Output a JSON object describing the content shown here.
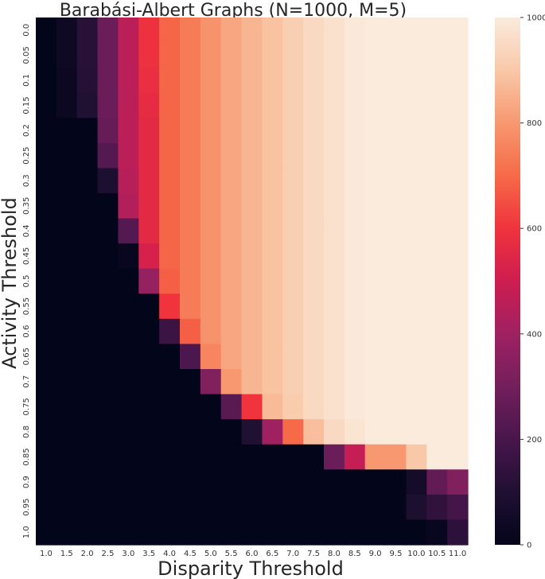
{
  "chart_data": {
    "type": "heatmap",
    "title": "Barabási-Albert Graphs (N=1000, M=5)",
    "xlabel": "Disparity Threshold",
    "ylabel": "Activity Threshold",
    "x_tick_labels": [
      "1.0",
      "1.5",
      "2.0",
      "2.5",
      "3.0",
      "3.5",
      "4.0",
      "4.5",
      "5.0",
      "5.5",
      "6.0",
      "6.5",
      "7.0",
      "7.5",
      "8.0",
      "8.5",
      "9.0",
      "9.5",
      "10.0",
      "10.5",
      "11.0"
    ],
    "y_tick_labels": [
      "0.0",
      "0.05",
      "0.1",
      "0.15",
      "0.2",
      "0.25",
      "0.3",
      "0.35",
      "0.4",
      "0.45",
      "0.5",
      "0.55",
      "0.6",
      "0.65",
      "0.7",
      "0.75",
      "0.8",
      "0.85",
      "0.9",
      "0.95",
      "1.0"
    ],
    "colorbar": {
      "min": 0,
      "max": 1000,
      "ticks": [
        0,
        200,
        400,
        600,
        800,
        1000
      ],
      "colormap": "rocket"
    },
    "values": [
      [
        0,
        40,
        120,
        280,
        460,
        590,
        690,
        740,
        790,
        830,
        860,
        890,
        920,
        950,
        970,
        990,
        1000,
        1000,
        1000,
        1000,
        1000
      ],
      [
        0,
        40,
        120,
        280,
        460,
        590,
        690,
        740,
        790,
        830,
        860,
        890,
        920,
        950,
        970,
        990,
        1000,
        1000,
        1000,
        1000,
        1000
      ],
      [
        0,
        30,
        110,
        280,
        460,
        580,
        690,
        740,
        790,
        830,
        860,
        890,
        920,
        950,
        970,
        990,
        1000,
        1000,
        1000,
        1000,
        1000
      ],
      [
        0,
        30,
        100,
        280,
        460,
        570,
        690,
        740,
        790,
        830,
        860,
        890,
        920,
        950,
        970,
        990,
        1000,
        1000,
        1000,
        1000,
        1000
      ],
      [
        0,
        0,
        0,
        270,
        460,
        560,
        690,
        740,
        790,
        830,
        860,
        890,
        920,
        950,
        970,
        990,
        1000,
        1000,
        1000,
        1000,
        1000
      ],
      [
        0,
        0,
        0,
        230,
        460,
        560,
        690,
        740,
        790,
        830,
        860,
        890,
        920,
        950,
        970,
        990,
        1000,
        1000,
        1000,
        1000,
        1000
      ],
      [
        0,
        0,
        0,
        90,
        450,
        560,
        690,
        740,
        790,
        830,
        860,
        890,
        920,
        950,
        970,
        990,
        1000,
        1000,
        1000,
        1000,
        1000
      ],
      [
        0,
        0,
        0,
        0,
        440,
        560,
        690,
        740,
        790,
        830,
        860,
        890,
        920,
        950,
        970,
        990,
        1000,
        1000,
        1000,
        1000,
        1000
      ],
      [
        0,
        0,
        0,
        0,
        230,
        560,
        690,
        740,
        790,
        830,
        860,
        890,
        920,
        950,
        970,
        990,
        1000,
        1000,
        1000,
        1000,
        1000
      ],
      [
        0,
        0,
        0,
        0,
        20,
        520,
        690,
        740,
        790,
        830,
        860,
        890,
        920,
        950,
        970,
        990,
        1000,
        1000,
        1000,
        1000,
        1000
      ],
      [
        0,
        0,
        0,
        0,
        0,
        380,
        680,
        740,
        790,
        830,
        860,
        890,
        920,
        950,
        970,
        990,
        1000,
        1000,
        1000,
        1000,
        1000
      ],
      [
        0,
        0,
        0,
        0,
        0,
        0,
        600,
        740,
        790,
        830,
        860,
        890,
        920,
        950,
        970,
        990,
        1000,
        1000,
        1000,
        1000,
        1000
      ],
      [
        0,
        0,
        0,
        0,
        0,
        0,
        170,
        680,
        790,
        830,
        860,
        890,
        920,
        950,
        970,
        990,
        1000,
        1000,
        1000,
        1000,
        1000
      ],
      [
        0,
        0,
        0,
        0,
        0,
        0,
        0,
        210,
        760,
        830,
        860,
        890,
        920,
        950,
        970,
        990,
        1000,
        1000,
        1000,
        1000,
        1000
      ],
      [
        0,
        0,
        0,
        0,
        0,
        0,
        0,
        0,
        330,
        800,
        860,
        890,
        920,
        950,
        970,
        990,
        1000,
        1000,
        1000,
        1000,
        1000
      ],
      [
        0,
        0,
        0,
        0,
        0,
        0,
        0,
        0,
        0,
        240,
        600,
        870,
        910,
        950,
        970,
        990,
        1000,
        1000,
        1000,
        1000,
        1000
      ],
      [
        0,
        0,
        0,
        0,
        0,
        0,
        0,
        0,
        0,
        0,
        100,
        400,
        700,
        880,
        950,
        980,
        1000,
        1000,
        1000,
        1000,
        1000
      ],
      [
        0,
        0,
        0,
        0,
        0,
        0,
        0,
        0,
        0,
        0,
        0,
        0,
        0,
        0,
        280,
        480,
        800,
        800,
        900,
        1000,
        1000
      ],
      [
        0,
        0,
        0,
        0,
        0,
        0,
        0,
        0,
        0,
        0,
        0,
        0,
        0,
        0,
        0,
        0,
        0,
        0,
        60,
        260,
        330
      ],
      [
        0,
        0,
        0,
        0,
        0,
        0,
        0,
        0,
        0,
        0,
        0,
        0,
        0,
        0,
        0,
        0,
        0,
        0,
        90,
        140,
        190
      ],
      [
        0,
        0,
        0,
        0,
        0,
        0,
        0,
        0,
        0,
        0,
        0,
        0,
        0,
        0,
        0,
        0,
        0,
        0,
        0,
        20,
        130
      ]
    ]
  }
}
